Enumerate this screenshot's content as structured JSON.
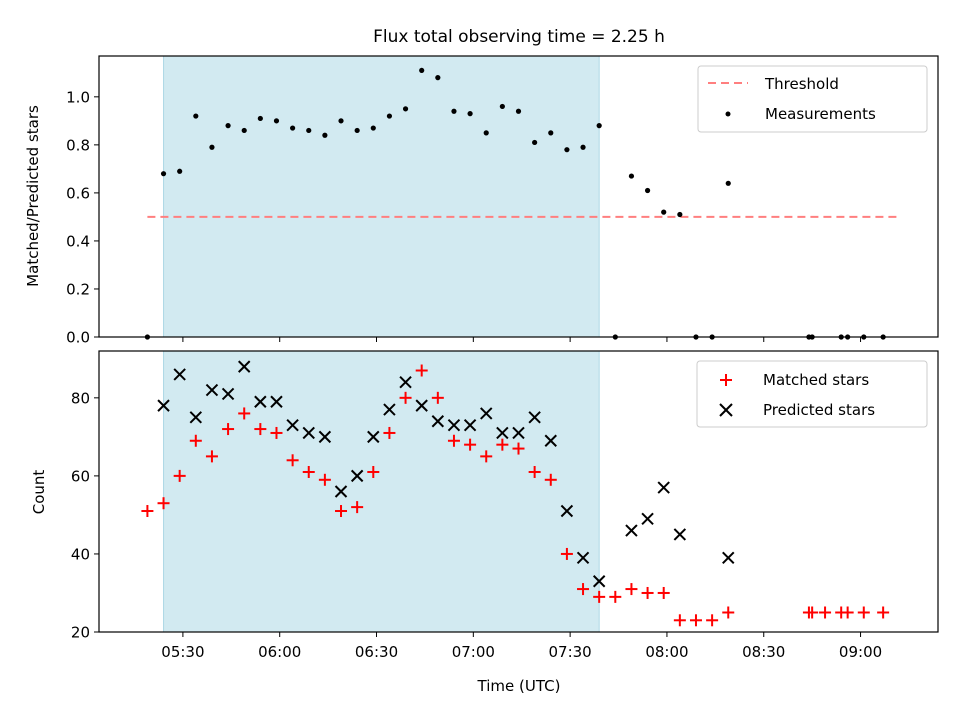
{
  "title": "Flux total observing time = 2.25 h",
  "colors": {
    "shade": "#ADD8E6",
    "threshold": "#FF7F7F",
    "measurement": "#000000",
    "matched": "#FF0000",
    "predicted": "#000000"
  },
  "chart_data": [
    {
      "type": "scatter",
      "ylabel": "Matched/Predicted stars",
      "xlabel": "",
      "ylim": [
        0,
        1.17
      ],
      "yticks": [
        "0.0",
        "0.2",
        "0.4",
        "0.6",
        "0.8",
        "1.0"
      ],
      "ytick_values": [
        0,
        0.2,
        0.4,
        0.6,
        0.8,
        1.0
      ],
      "legend": [
        "Threshold",
        "Measurements"
      ],
      "legend_position": "upper right",
      "shaded_interval": [
        "05:24",
        "07:39"
      ],
      "threshold": {
        "name": "Threshold",
        "value": 0.5,
        "x_range": [
          "05:19",
          "09:12"
        ]
      },
      "series": [
        {
          "name": "Measurements",
          "x": [
            "05:19",
            "05:24",
            "05:29",
            "05:34",
            "05:39",
            "05:44",
            "05:49",
            "05:54",
            "05:59",
            "06:04",
            "06:09",
            "06:14",
            "06:19",
            "06:24",
            "06:29",
            "06:34",
            "06:39",
            "06:44",
            "06:49",
            "06:54",
            "06:59",
            "07:04",
            "07:09",
            "07:14",
            "07:19",
            "07:24",
            "07:29",
            "07:34",
            "07:39",
            "07:44",
            "07:49",
            "07:54",
            "07:59",
            "08:04",
            "08:09",
            "08:14",
            "08:19",
            "08:44",
            "08:45",
            "08:54",
            "08:56",
            "09:01",
            "09:07"
          ],
          "y": [
            0.0,
            0.68,
            0.69,
            0.92,
            0.79,
            0.88,
            0.86,
            0.91,
            0.9,
            0.87,
            0.86,
            0.84,
            0.9,
            0.86,
            0.87,
            0.92,
            0.95,
            1.11,
            1.08,
            0.94,
            0.93,
            0.85,
            0.96,
            0.94,
            0.81,
            0.85,
            0.78,
            0.79,
            0.88,
            0.0,
            0.67,
            0.61,
            0.52,
            0.51,
            0.0,
            0.0,
            0.64,
            0.0,
            0.0,
            0.0,
            0.0,
            0.0,
            0.0
          ]
        }
      ]
    },
    {
      "type": "scatter",
      "ylabel": "Count",
      "xlabel": "Time (UTC)",
      "ylim": [
        20,
        92
      ],
      "yticks": [
        "20",
        "40",
        "60",
        "80"
      ],
      "ytick_values": [
        20,
        40,
        60,
        80
      ],
      "xticks": [
        "05:30",
        "06:00",
        "06:30",
        "07:00",
        "07:30",
        "08:00",
        "08:30",
        "09:00"
      ],
      "xlim": [
        "05:04",
        "09:24"
      ],
      "legend": [
        "Matched stars",
        "Predicted stars"
      ],
      "legend_position": "upper right",
      "series": [
        {
          "name": "Matched stars",
          "x": [
            "05:19",
            "05:24",
            "05:29",
            "05:34",
            "05:39",
            "05:44",
            "05:49",
            "05:54",
            "05:59",
            "06:04",
            "06:09",
            "06:14",
            "06:19",
            "06:24",
            "06:29",
            "06:34",
            "06:39",
            "06:44",
            "06:49",
            "06:54",
            "06:59",
            "07:04",
            "07:09",
            "07:14",
            "07:19",
            "07:24",
            "07:29",
            "07:34",
            "07:39",
            "07:44",
            "07:49",
            "07:54",
            "07:59",
            "08:04",
            "08:09",
            "08:14",
            "08:19",
            "08:44",
            "08:45",
            "08:49",
            "08:54",
            "08:56",
            "09:01",
            "09:07"
          ],
          "y": [
            51,
            53,
            60,
            69,
            65,
            72,
            76,
            72,
            71,
            64,
            61,
            59,
            51,
            52,
            61,
            71,
            80,
            87,
            80,
            69,
            68,
            65,
            68,
            67,
            61,
            59,
            40,
            31,
            29,
            29,
            31,
            30,
            30,
            23,
            23,
            23,
            25,
            25,
            25,
            25,
            25,
            25,
            25,
            25
          ]
        },
        {
          "name": "Predicted stars",
          "x": [
            "05:24",
            "05:29",
            "05:34",
            "05:39",
            "05:44",
            "05:49",
            "05:54",
            "05:59",
            "06:04",
            "06:09",
            "06:14",
            "06:19",
            "06:24",
            "06:29",
            "06:34",
            "06:39",
            "06:44",
            "06:49",
            "06:54",
            "06:59",
            "07:04",
            "07:09",
            "07:14",
            "07:19",
            "07:24",
            "07:29",
            "07:34",
            "07:39",
            "07:49",
            "07:54",
            "07:59",
            "08:04",
            "08:19"
          ],
          "y": [
            78,
            86,
            75,
            82,
            81,
            88,
            79,
            79,
            73,
            71,
            70,
            56,
            60,
            70,
            77,
            84,
            78,
            74,
            73,
            73,
            76,
            71,
            71,
            75,
            69,
            51,
            39,
            33,
            46,
            49,
            57,
            45,
            39
          ]
        }
      ]
    }
  ]
}
